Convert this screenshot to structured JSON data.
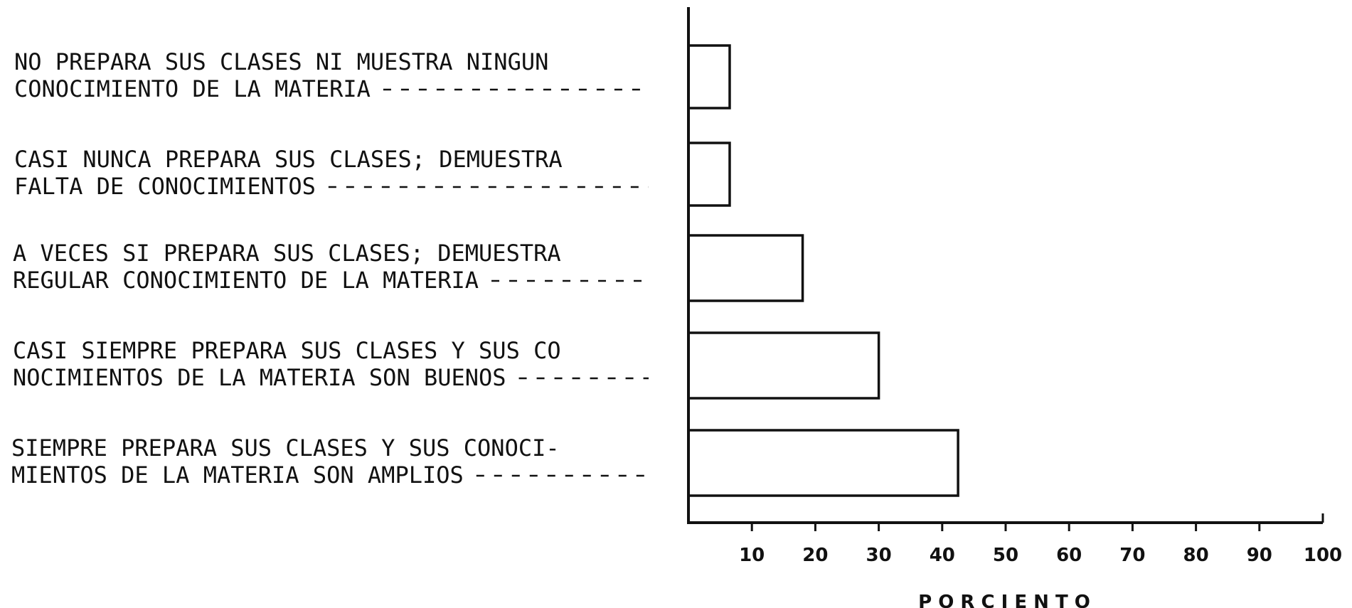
{
  "chart_data": {
    "type": "bar",
    "orientation": "horizontal",
    "categories": [
      [
        "NO PREPARA SUS CLASES NI MUESTRA NINGUN",
        "CONOCIMIENTO DE LA MATERIA"
      ],
      [
        "CASI NUNCA PREPARA SUS CLASES; DEMUESTRA",
        "FALTA DE CONOCIMIENTOS"
      ],
      [
        "A VECES SI PREPARA SUS CLASES; DEMUESTRA",
        "REGULAR CONOCIMIENTO DE LA MATERIA"
      ],
      [
        "CASI SIEMPRE PREPARA SUS CLASES Y SUS CO",
        "NOCIMIENTOS DE LA MATERIA SON BUENOS"
      ],
      [
        "SIEMPRE PREPARA SUS CLASES Y SUS CONOCI-",
        "MIENTOS DE LA MATERIA SON AMPLIOS"
      ]
    ],
    "values": [
      6.5,
      6.5,
      18,
      30,
      42.5
    ],
    "xlabel": "P O R C I E N T O",
    "xlim": [
      0,
      100
    ],
    "xticks": [
      10,
      20,
      30,
      40,
      50,
      60,
      70,
      80,
      90,
      100
    ],
    "xtick_labels": [
      "10",
      "20",
      "30",
      "40",
      "50",
      "60",
      "70",
      "80",
      "90",
      "100"
    ],
    "grid": false,
    "legend": false
  }
}
